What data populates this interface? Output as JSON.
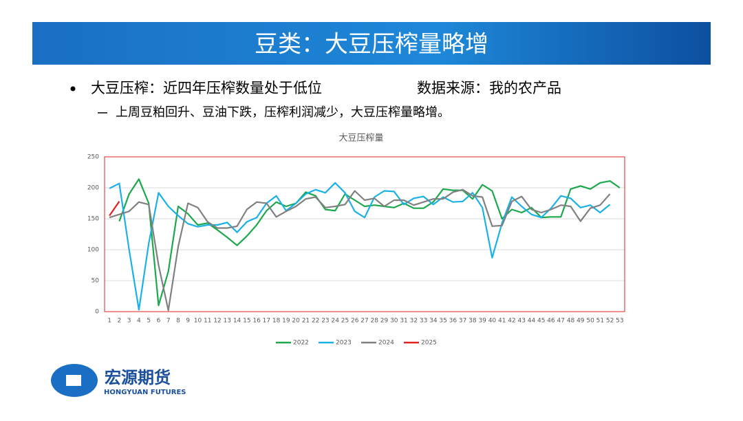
{
  "slide": {
    "title": "豆类：大豆压榨量略增",
    "bullet": "大豆压榨：近四年压榨数量处于低位",
    "source": "数据来源：我的农产品",
    "sub_bullet": "上周豆粕回升、豆油下跌，压榨利润减少，大豆压榨量略增。",
    "logo_cn": "宏源期货",
    "logo_en": "HONGYUAN FUTURES"
  },
  "chart_data": {
    "type": "line",
    "title": "大豆压榨量",
    "categories": [
      "1",
      "2",
      "3",
      "4",
      "5",
      "6",
      "7",
      "8",
      "9",
      "10",
      "11",
      "12",
      "13",
      "14",
      "15",
      "16",
      "17",
      "18",
      "19",
      "20",
      "21",
      "22",
      "23",
      "24",
      "25",
      "26",
      "27",
      "28",
      "29",
      "30",
      "31",
      "32",
      "33",
      "34",
      "35",
      "36",
      "37",
      "38",
      "39",
      "40",
      "41",
      "42",
      "43",
      "44",
      "45",
      "46",
      "47",
      "48",
      "49",
      "50",
      "51",
      "52",
      "53"
    ],
    "ylim": [
      0,
      250
    ],
    "yticks": [
      0,
      50,
      100,
      150,
      200,
      250
    ],
    "grid": true,
    "legend": "bottom",
    "series": [
      {
        "name": "2022",
        "color": "#1aa84a",
        "values": [
          null,
          146,
          190,
          214,
          175,
          10,
          65,
          170,
          158,
          140,
          143,
          132,
          120,
          107,
          122,
          140,
          163,
          177,
          170,
          175,
          193,
          187,
          165,
          163,
          190,
          180,
          170,
          172,
          170,
          168,
          175,
          167,
          167,
          177,
          198,
          196,
          196,
          182,
          205,
          195,
          150,
          165,
          160,
          168,
          152,
          153,
          153,
          198,
          203,
          198,
          208,
          211,
          200
        ]
      },
      {
        "name": "2023",
        "color": "#1ab0e8",
        "values": [
          199,
          207,
          100,
          3,
          110,
          192,
          170,
          155,
          142,
          137,
          140,
          140,
          144,
          128,
          145,
          152,
          175,
          187,
          163,
          175,
          190,
          197,
          192,
          208,
          192,
          162,
          152,
          185,
          195,
          194,
          173,
          183,
          186,
          173,
          185,
          177,
          178,
          192,
          168,
          87,
          143,
          185,
          170,
          157,
          152,
          167,
          187,
          183,
          168,
          172,
          160,
          173,
          null
        ]
      },
      {
        "name": "2024",
        "color": "#808080",
        "values": [
          152,
          157,
          162,
          177,
          173,
          75,
          2,
          105,
          175,
          168,
          145,
          135,
          135,
          138,
          165,
          177,
          175,
          153,
          162,
          170,
          182,
          185,
          168,
          170,
          173,
          195,
          180,
          183,
          170,
          180,
          180,
          172,
          177,
          182,
          182,
          193,
          197,
          187,
          185,
          138,
          139,
          178,
          186,
          165,
          160,
          165,
          172,
          170,
          146,
          167,
          172,
          190,
          null
        ]
      },
      {
        "name": "2025",
        "color": "#e02020",
        "values": [
          155,
          178,
          null,
          null,
          null,
          null,
          null,
          null,
          null,
          null,
          null,
          null,
          null,
          null,
          null,
          null,
          null,
          null,
          null,
          null,
          null,
          null,
          null,
          null,
          null,
          null,
          null,
          null,
          null,
          null,
          null,
          null,
          null,
          null,
          null,
          null,
          null,
          null,
          null,
          null,
          null,
          null,
          null,
          null,
          null,
          null,
          null,
          null,
          null,
          null,
          null,
          null,
          null
        ]
      }
    ]
  }
}
